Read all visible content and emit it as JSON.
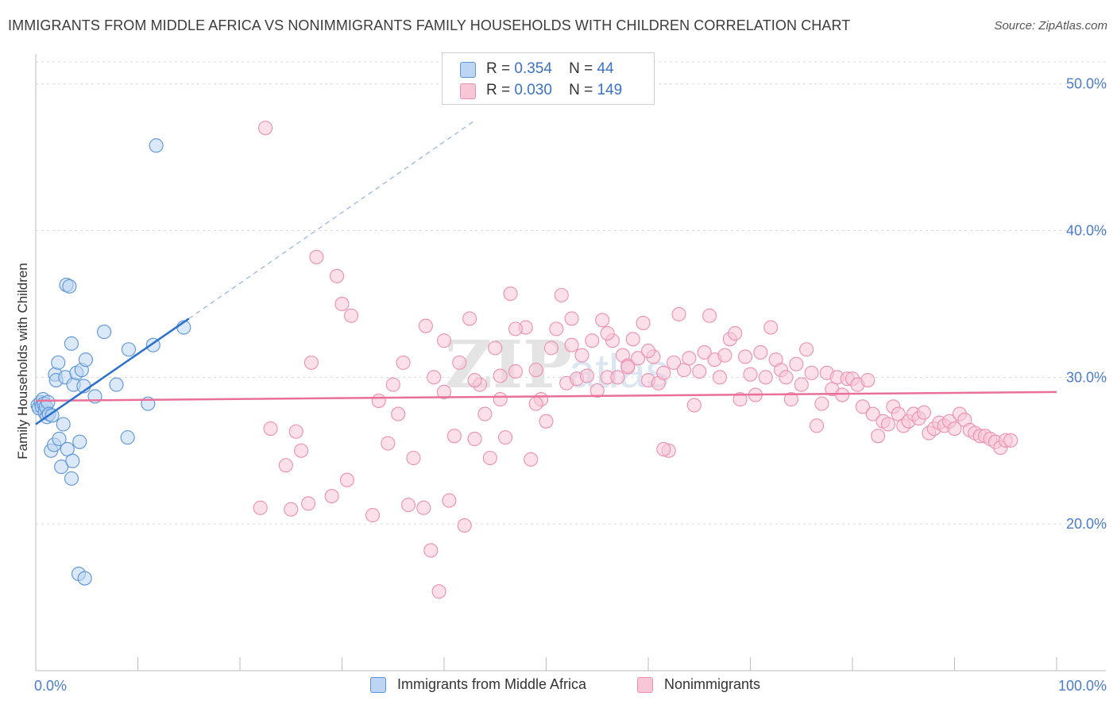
{
  "chart_data": {
    "type": "scatter",
    "title": "IMMIGRANTS FROM MIDDLE AFRICA VS NONIMMIGRANTS FAMILY HOUSEHOLDS WITH CHILDREN CORRELATION CHART",
    "source": "Source: ZipAtlas.com",
    "xlabel": "",
    "ylabel": "Family Households with Children",
    "xlim": [
      0,
      100
    ],
    "ylim": [
      10,
      51.5
    ],
    "x_tick_labels": [
      "0.0%",
      "100.0%"
    ],
    "y_ticks": [
      {
        "value": 20,
        "label": "20.0%"
      },
      {
        "value": 30,
        "label": "30.0%"
      },
      {
        "value": 40,
        "label": "40.0%"
      },
      {
        "value": 50,
        "label": "50.0%"
      }
    ],
    "watermark": "ZIPatlas",
    "legend": [
      {
        "r_label": "R =",
        "r_value": "0.354",
        "n_label": "N =",
        "n_value": "44"
      },
      {
        "r_label": "R =",
        "r_value": "0.030",
        "n_label": "N =",
        "n_value": "149"
      }
    ],
    "series": [
      {
        "name": "Immigrants from Middle Africa",
        "color": "#5b93d8",
        "fill": "#bcd5f3",
        "line_color": "#2a70cc",
        "trend": {
          "x0": 0,
          "y0": 26.8,
          "x1": 15,
          "y1": 34.0,
          "dash_to_x": 43,
          "dash_to_y": 47.5
        },
        "points": [
          [
            0.2,
            28.1
          ],
          [
            0.3,
            27.9
          ],
          [
            0.5,
            28.3
          ],
          [
            0.6,
            28.0
          ],
          [
            0.7,
            28.5
          ],
          [
            0.8,
            28.2
          ],
          [
            0.9,
            27.6
          ],
          [
            1.0,
            28.0
          ],
          [
            1.1,
            27.3
          ],
          [
            1.2,
            28.3
          ],
          [
            1.3,
            27.5
          ],
          [
            1.5,
            25.0
          ],
          [
            1.6,
            27.4
          ],
          [
            1.8,
            25.4
          ],
          [
            1.9,
            30.2
          ],
          [
            2.0,
            29.8
          ],
          [
            2.2,
            31.0
          ],
          [
            2.3,
            25.8
          ],
          [
            2.5,
            23.9
          ],
          [
            2.7,
            26.8
          ],
          [
            2.9,
            30.0
          ],
          [
            3.1,
            25.1
          ],
          [
            3.0,
            36.3
          ],
          [
            3.3,
            36.2
          ],
          [
            3.5,
            23.1
          ],
          [
            3.6,
            24.3
          ],
          [
            3.7,
            29.5
          ],
          [
            3.5,
            32.3
          ],
          [
            4.0,
            30.3
          ],
          [
            4.2,
            16.6
          ],
          [
            4.3,
            25.6
          ],
          [
            4.5,
            30.5
          ],
          [
            4.7,
            29.4
          ],
          [
            4.8,
            16.3
          ],
          [
            4.9,
            31.2
          ],
          [
            5.8,
            28.7
          ],
          [
            6.7,
            33.1
          ],
          [
            7.9,
            29.5
          ],
          [
            9.0,
            25.9
          ],
          [
            9.1,
            31.9
          ],
          [
            11.0,
            28.2
          ],
          [
            11.5,
            32.2
          ],
          [
            14.5,
            33.4
          ],
          [
            11.8,
            45.8
          ]
        ]
      },
      {
        "name": "Nonimmigrants",
        "color": "#ec8fae",
        "fill": "#f8c7d7",
        "line_color": "#e8709a",
        "trend": {
          "x0": 0,
          "y0": 28.4,
          "x1": 100,
          "y1": 29.0
        },
        "points": [
          [
            22.5,
            47.0
          ],
          [
            27.5,
            38.2
          ],
          [
            29.5,
            36.9
          ],
          [
            30.0,
            35.0
          ],
          [
            30.9,
            34.2
          ],
          [
            23.0,
            26.5
          ],
          [
            24.5,
            24.0
          ],
          [
            26.0,
            25.0
          ],
          [
            27.0,
            31.0
          ],
          [
            25.5,
            26.3
          ],
          [
            22.0,
            21.1
          ],
          [
            25.0,
            21.0
          ],
          [
            26.7,
            21.4
          ],
          [
            29.0,
            21.9
          ],
          [
            30.5,
            23.0
          ],
          [
            33.0,
            20.6
          ],
          [
            33.6,
            28.4
          ],
          [
            34.5,
            25.5
          ],
          [
            35.5,
            27.5
          ],
          [
            35.0,
            29.5
          ],
          [
            36.5,
            21.3
          ],
          [
            37.0,
            24.5
          ],
          [
            38.0,
            21.1
          ],
          [
            38.7,
            18.2
          ],
          [
            38.2,
            33.5
          ],
          [
            39.0,
            30.0
          ],
          [
            39.5,
            15.4
          ],
          [
            40.0,
            29.0
          ],
          [
            40.5,
            21.6
          ],
          [
            41.0,
            26.0
          ],
          [
            42.0,
            19.9
          ],
          [
            42.5,
            34.0
          ],
          [
            43.0,
            25.8
          ],
          [
            43.5,
            29.5
          ],
          [
            44.0,
            27.5
          ],
          [
            44.5,
            24.5
          ],
          [
            45.0,
            32.0
          ],
          [
            45.5,
            30.1
          ],
          [
            46.0,
            25.9
          ],
          [
            46.5,
            35.7
          ],
          [
            47.0,
            30.4
          ],
          [
            48.0,
            33.4
          ],
          [
            48.5,
            24.4
          ],
          [
            49.0,
            30.5
          ],
          [
            49.5,
            28.5
          ],
          [
            50.0,
            27.0
          ],
          [
            51.0,
            33.3
          ],
          [
            51.5,
            35.6
          ],
          [
            52.0,
            29.6
          ],
          [
            52.5,
            32.2
          ],
          [
            53.0,
            29.9
          ],
          [
            53.5,
            31.5
          ],
          [
            54.0,
            30.1
          ],
          [
            54.5,
            32.5
          ],
          [
            55.0,
            29.1
          ],
          [
            55.5,
            33.9
          ],
          [
            56.0,
            30.0
          ],
          [
            56.5,
            32.5
          ],
          [
            57.0,
            30.0
          ],
          [
            57.5,
            31.5
          ],
          [
            58.0,
            30.8
          ],
          [
            58.5,
            32.6
          ],
          [
            59.0,
            31.3
          ],
          [
            59.5,
            33.7
          ],
          [
            60.0,
            29.8
          ],
          [
            60.5,
            31.4
          ],
          [
            61.0,
            29.6
          ],
          [
            61.5,
            30.3
          ],
          [
            62.0,
            25.0
          ],
          [
            62.5,
            31.0
          ],
          [
            63.0,
            34.3
          ],
          [
            63.5,
            30.5
          ],
          [
            64.0,
            31.3
          ],
          [
            64.5,
            28.1
          ],
          [
            65.0,
            30.4
          ],
          [
            65.5,
            31.7
          ],
          [
            66.0,
            34.2
          ],
          [
            66.5,
            31.2
          ],
          [
            67.0,
            30.0
          ],
          [
            67.5,
            31.5
          ],
          [
            68.0,
            32.6
          ],
          [
            68.5,
            33.0
          ],
          [
            69.0,
            28.5
          ],
          [
            69.5,
            31.4
          ],
          [
            70.0,
            30.2
          ],
          [
            70.5,
            28.8
          ],
          [
            71.0,
            31.7
          ],
          [
            71.5,
            30.0
          ],
          [
            72.0,
            33.4
          ],
          [
            72.5,
            31.2
          ],
          [
            73.0,
            30.5
          ],
          [
            73.5,
            30.0
          ],
          [
            74.0,
            28.5
          ],
          [
            74.5,
            30.9
          ],
          [
            75.0,
            29.5
          ],
          [
            75.5,
            31.9
          ],
          [
            76.0,
            30.3
          ],
          [
            76.5,
            26.7
          ],
          [
            77.0,
            28.2
          ],
          [
            77.5,
            30.3
          ],
          [
            78.0,
            29.2
          ],
          [
            78.5,
            30.0
          ],
          [
            79.0,
            28.8
          ],
          [
            79.5,
            29.9
          ],
          [
            80.0,
            29.9
          ],
          [
            80.5,
            29.5
          ],
          [
            81.0,
            28.0
          ],
          [
            81.5,
            29.8
          ],
          [
            82.0,
            27.5
          ],
          [
            82.5,
            26.0
          ],
          [
            83.0,
            27.0
          ],
          [
            83.5,
            26.8
          ],
          [
            84.0,
            28.0
          ],
          [
            84.5,
            27.5
          ],
          [
            85.0,
            26.7
          ],
          [
            85.5,
            27.0
          ],
          [
            86.0,
            27.5
          ],
          [
            86.5,
            27.2
          ],
          [
            87.0,
            27.6
          ],
          [
            87.5,
            26.2
          ],
          [
            88.0,
            26.5
          ],
          [
            88.5,
            26.9
          ],
          [
            89.0,
            26.7
          ],
          [
            89.5,
            27.0
          ],
          [
            90.0,
            26.5
          ],
          [
            90.5,
            27.5
          ],
          [
            91.0,
            27.1
          ],
          [
            91.5,
            26.4
          ],
          [
            92.0,
            26.2
          ],
          [
            92.5,
            26.0
          ],
          [
            93.0,
            26.0
          ],
          [
            93.5,
            25.8
          ],
          [
            94.0,
            25.6
          ],
          [
            94.5,
            25.2
          ],
          [
            95.0,
            25.7
          ],
          [
            95.5,
            25.7
          ],
          [
            60.0,
            31.8
          ],
          [
            58.0,
            30.7
          ],
          [
            56.0,
            33.0
          ],
          [
            52.5,
            34.0
          ],
          [
            49.0,
            28.2
          ],
          [
            47.0,
            33.3
          ],
          [
            45.5,
            28.5
          ],
          [
            43.0,
            29.8
          ],
          [
            41.5,
            31.0
          ],
          [
            40.0,
            32.5
          ],
          [
            61.5,
            25.1
          ],
          [
            50.5,
            32.0
          ],
          [
            36.0,
            31.0
          ]
        ]
      }
    ]
  }
}
